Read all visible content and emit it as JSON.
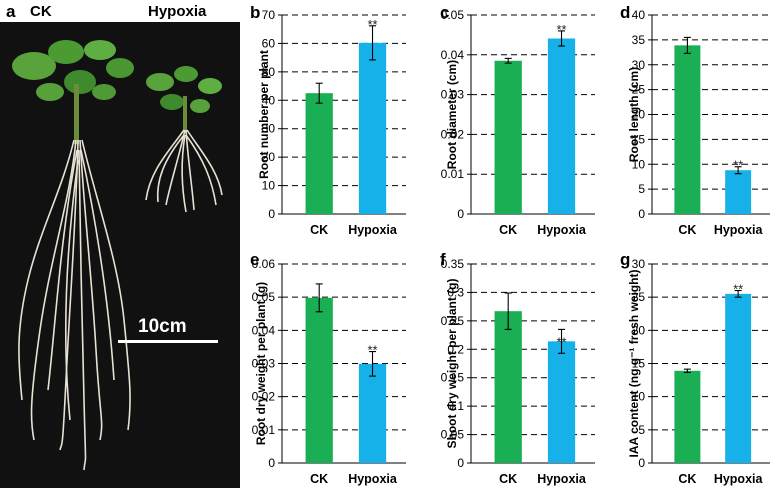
{
  "photo": {
    "label": "a",
    "ck_label": "CK",
    "hypoxia_label": "Hypoxia",
    "scale_text": "10cm",
    "background": "#111111"
  },
  "colors": {
    "ck": "#1aaf54",
    "hypoxia": "#17b1ea"
  },
  "chart_data": [
    {
      "panel": "b",
      "type": "bar",
      "categories": [
        "CK",
        "Hypoxia"
      ],
      "values": [
        42.5,
        60.2
      ],
      "errors": [
        3.5,
        6.0
      ],
      "ylabel": "Root number per plant",
      "ylim": [
        0,
        70
      ],
      "yticks": [
        0,
        10,
        20,
        30,
        40,
        50,
        60,
        70
      ],
      "tick_labels": [
        "0",
        "10",
        "20",
        "30",
        "40",
        "50",
        "60",
        "70"
      ],
      "significance": [
        "",
        "**"
      ],
      "grid": "dashed",
      "sig_pos": "above"
    },
    {
      "panel": "c",
      "type": "bar",
      "categories": [
        "CK",
        "Hypoxia"
      ],
      "values": [
        0.0385,
        0.0441
      ],
      "errors": [
        0.0006,
        0.0019
      ],
      "ylabel": "Root diameter (cm)",
      "ylim": [
        0,
        0.05
      ],
      "yticks": [
        0,
        0.01,
        0.02,
        0.03,
        0.04,
        0.05
      ],
      "tick_labels": [
        "0",
        "0.01",
        "0.02",
        "0.03",
        "0.04",
        "0.05"
      ],
      "significance": [
        "",
        "**"
      ],
      "grid": "dashed",
      "sig_pos": "above"
    },
    {
      "panel": "d",
      "type": "bar",
      "categories": [
        "CK",
        "Hypoxia"
      ],
      "values": [
        33.9,
        8.8
      ],
      "errors": [
        1.6,
        0.7
      ],
      "ylabel": "Root length (cm)",
      "ylim": [
        0,
        40
      ],
      "yticks": [
        0,
        5,
        10,
        15,
        20,
        25,
        30,
        35,
        40
      ],
      "tick_labels": [
        "0",
        "5",
        "10",
        "15",
        "20",
        "25",
        "30",
        "35",
        "40"
      ],
      "significance": [
        "",
        "**"
      ],
      "grid": "dashed",
      "sig_pos": "above"
    },
    {
      "panel": "e",
      "type": "bar",
      "categories": [
        "CK",
        "Hypoxia"
      ],
      "values": [
        0.0498,
        0.0299
      ],
      "errors": [
        0.0042,
        0.0037
      ],
      "ylabel": "Root dry weight per plant (g)",
      "ylim": [
        0,
        0.06
      ],
      "yticks": [
        0,
        0.01,
        0.02,
        0.03,
        0.04,
        0.05,
        0.06
      ],
      "tick_labels": [
        "0",
        "0.01",
        "0.02",
        "0.03",
        "0.04",
        "0.05",
        "0.06"
      ],
      "significance": [
        "",
        "**"
      ],
      "grid": "dashed",
      "sig_pos": "above"
    },
    {
      "panel": "f",
      "type": "bar",
      "categories": [
        "CK",
        "Hypoxia"
      ],
      "values": [
        0.267,
        0.214
      ],
      "errors": [
        0.032,
        0.021
      ],
      "ylabel": "Shoot dry weight per plant (g)",
      "ylim": [
        0,
        0.35
      ],
      "yticks": [
        0,
        0.05,
        0.1,
        0.15,
        0.2,
        0.25,
        0.3,
        0.35
      ],
      "tick_labels": [
        "0",
        "0.05",
        "0.1",
        "0.15",
        "0.2",
        "0.25",
        "0.3",
        "0.35"
      ],
      "significance": [
        "",
        "**"
      ],
      "grid": "dashed",
      "sig_pos": "inside"
    },
    {
      "panel": "g",
      "type": "bar",
      "categories": [
        "CK",
        "Hypoxia"
      ],
      "values": [
        13.9,
        25.5
      ],
      "errors": [
        0.25,
        0.5
      ],
      "ylabel": "IAA content (ng g⁻¹ fresh weight)",
      "ylim": [
        0,
        30
      ],
      "yticks": [
        0,
        5,
        10,
        15,
        20,
        25,
        30
      ],
      "tick_labels": [
        "0",
        "5",
        "10",
        "15",
        "20",
        "25",
        "30"
      ],
      "significance": [
        "",
        "**"
      ],
      "grid": "dashed",
      "sig_pos": "above"
    }
  ]
}
